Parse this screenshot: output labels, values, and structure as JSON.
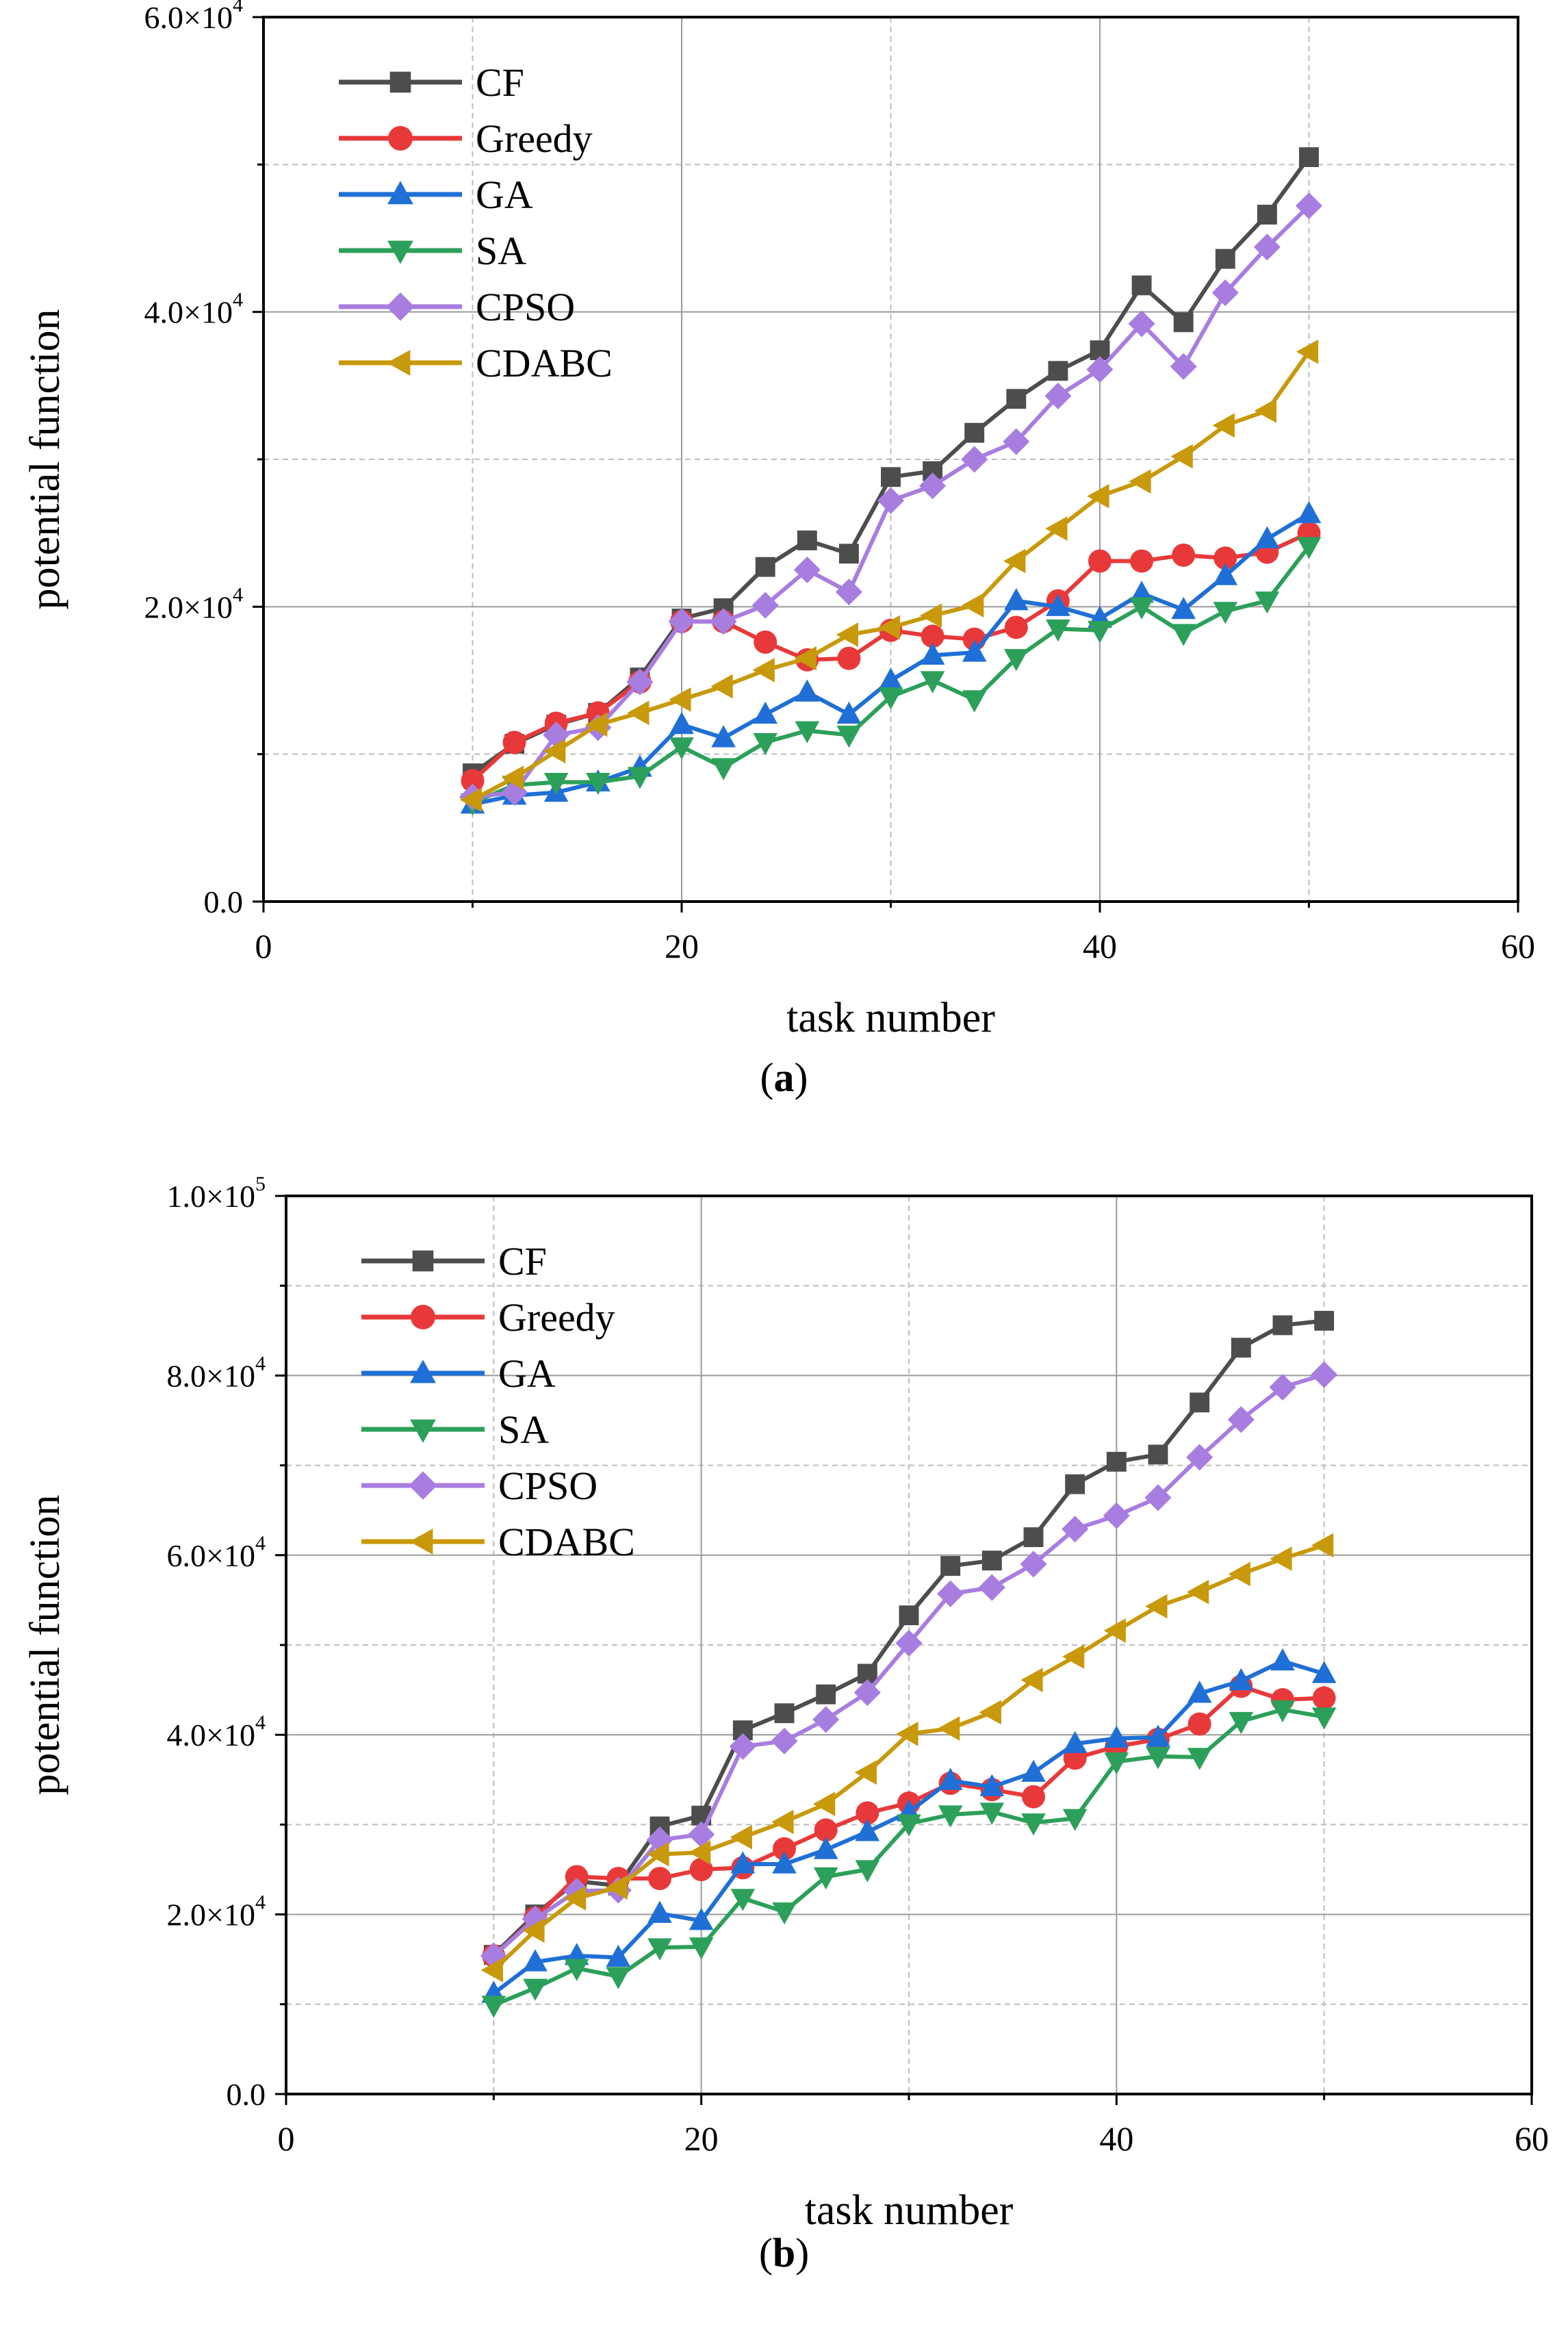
{
  "panels": [
    {
      "caption_letter": "a",
      "chart_data": {
        "type": "line",
        "xlabel": "task number",
        "ylabel": "potential function",
        "xlim": [
          0,
          60
        ],
        "ylim": [
          0,
          60000
        ],
        "x_ticks": [
          0,
          20,
          40,
          60
        ],
        "x_tick_labels": [
          "0",
          "20",
          "40",
          "60"
        ],
        "y_ticks": [
          0,
          20000,
          40000,
          60000
        ],
        "y_tick_labels": [
          {
            "mantissa": "0.0",
            "exponent": ""
          },
          {
            "mantissa": "2.0×10",
            "exponent": "4"
          },
          {
            "mantissa": "4.0×10",
            "exponent": "4"
          },
          {
            "mantissa": "6.0×10",
            "exponent": "4"
          }
        ],
        "minor_y_step": 10000,
        "minor_x_step": 10,
        "grid": true,
        "legend_position": "top-left",
        "x": [
          10,
          12,
          14,
          16,
          18,
          20,
          22,
          24,
          26,
          28,
          30,
          32,
          34,
          36,
          38,
          40,
          42,
          44,
          46,
          48,
          50
        ],
        "series": [
          {
            "name": "CF",
            "color": "#4d4d4d",
            "marker": "square",
            "values": [
              8700,
              10700,
              12000,
              12800,
              15200,
              19200,
              19900,
              22700,
              24500,
              23600,
              28800,
              29200,
              31800,
              34100,
              36000,
              37400,
              41800,
              39300,
              43600,
              46600,
              50500
            ]
          },
          {
            "name": "Greedy",
            "color": "#e8393a",
            "marker": "circle",
            "values": [
              8200,
              10800,
              12100,
              12800,
              14900,
              19000,
              19000,
              17600,
              16400,
              16500,
              18400,
              18000,
              17800,
              18600,
              20400,
              23100,
              23100,
              23500,
              23300,
              23700,
              25000
            ]
          },
          {
            "name": "GA",
            "color": "#1f6fd6",
            "marker": "triangle-up",
            "values": [
              6600,
              7200,
              7400,
              8100,
              9100,
              12000,
              11100,
              12700,
              14200,
              12700,
              15000,
              16700,
              16900,
              20400,
              20000,
              19200,
              20900,
              19800,
              22100,
              24600,
              26300
            ]
          },
          {
            "name": "SA",
            "color": "#2ca05a",
            "marker": "triangle-down",
            "values": [
              6700,
              7900,
              8100,
              8100,
              8500,
              10500,
              9100,
              10800,
              11600,
              11300,
              13900,
              15000,
              13700,
              16500,
              18500,
              18400,
              20000,
              18200,
              19700,
              20400,
              24100
            ]
          },
          {
            "name": "CPSO",
            "color": "#a87de0",
            "marker": "diamond",
            "values": [
              7100,
              7400,
              11300,
              11800,
              14900,
              19000,
              19000,
              20100,
              22500,
              21000,
              27200,
              28200,
              30000,
              31200,
              34300,
              36100,
              39200,
              36300,
              41300,
              44400,
              47200
            ]
          },
          {
            "name": "CDABC",
            "color": "#c8990b",
            "marker": "triangle-left",
            "values": [
              6900,
              8400,
              10200,
              12000,
              12800,
              13700,
              14600,
              15700,
              16500,
              18100,
              18600,
              19400,
              20100,
              23100,
              25300,
              27500,
              28500,
              30200,
              32300,
              33300,
              37300
            ]
          }
        ]
      }
    },
    {
      "caption_letter": "b",
      "chart_data": {
        "type": "line",
        "xlabel": "task number",
        "ylabel": "potential function",
        "xlim": [
          0,
          60
        ],
        "ylim": [
          0,
          100000
        ],
        "x_ticks": [
          0,
          20,
          40,
          60
        ],
        "x_tick_labels": [
          "0",
          "20",
          "40",
          "60"
        ],
        "y_ticks": [
          0,
          20000,
          40000,
          60000,
          80000,
          100000
        ],
        "y_tick_labels": [
          {
            "mantissa": "0.0",
            "exponent": ""
          },
          {
            "mantissa": "2.0×10",
            "exponent": "4"
          },
          {
            "mantissa": "4.0×10",
            "exponent": "4"
          },
          {
            "mantissa": "6.0×10",
            "exponent": "4"
          },
          {
            "mantissa": "8.0×10",
            "exponent": "4"
          },
          {
            "mantissa": "1.0×10",
            "exponent": "5"
          }
        ],
        "minor_y_step": 10000,
        "minor_x_step": 10,
        "grid": true,
        "legend_position": "top-left",
        "x": [
          10,
          12,
          14,
          16,
          18,
          20,
          22,
          24,
          26,
          28,
          30,
          32,
          34,
          36,
          38,
          40,
          42,
          44,
          46,
          48,
          50
        ],
        "series": [
          {
            "name": "CF",
            "color": "#4d4d4d",
            "marker": "square",
            "values": [
              15500,
              20000,
              23700,
              23200,
              29800,
              31000,
              40500,
              42400,
              44500,
              46800,
              53300,
              58800,
              59400,
              62000,
              67900,
              70400,
              71200,
              77000,
              83100,
              85600,
              86100
            ]
          },
          {
            "name": "Greedy",
            "color": "#e8393a",
            "marker": "circle",
            "values": [
              15400,
              19600,
              24200,
              24000,
              24000,
              25000,
              25200,
              27300,
              29400,
              31300,
              32400,
              34600,
              33900,
              33100,
              37400,
              38700,
              39500,
              41200,
              45400,
              43900,
              44100
            ]
          },
          {
            "name": "GA",
            "color": "#1f6fd6",
            "marker": "triangle-up",
            "values": [
              11200,
              14700,
              15400,
              15200,
              20100,
              19300,
              25600,
              25600,
              27200,
              29200,
              31400,
              34900,
              34200,
              35800,
              39000,
              39600,
              39700,
              44600,
              46000,
              48200,
              46800
            ]
          },
          {
            "name": "SA",
            "color": "#2ca05a",
            "marker": "triangle-down",
            "values": [
              9900,
              11800,
              14000,
              13100,
              16300,
              16400,
              21800,
              20300,
              24200,
              25000,
              30100,
              31100,
              31400,
              30200,
              30700,
              37000,
              37600,
              37500,
              41500,
              42800,
              42000
            ]
          },
          {
            "name": "CPSO",
            "color": "#a87de0",
            "marker": "diamond",
            "values": [
              15400,
              19500,
              22600,
              22700,
              28300,
              28900,
              38700,
              39300,
              41700,
              44700,
              50200,
              55700,
              56400,
              59000,
              62900,
              64400,
              66400,
              70900,
              75100,
              78700,
              80100
            ]
          },
          {
            "name": "CDABC",
            "color": "#c8990b",
            "marker": "triangle-left",
            "values": [
              13800,
              18200,
              21800,
              23000,
              26700,
              26900,
              28600,
              30300,
              32300,
              35800,
              40100,
              40700,
              42500,
              46100,
              48700,
              51600,
              54300,
              55900,
              57900,
              59600,
              61100
            ]
          }
        ]
      }
    }
  ]
}
